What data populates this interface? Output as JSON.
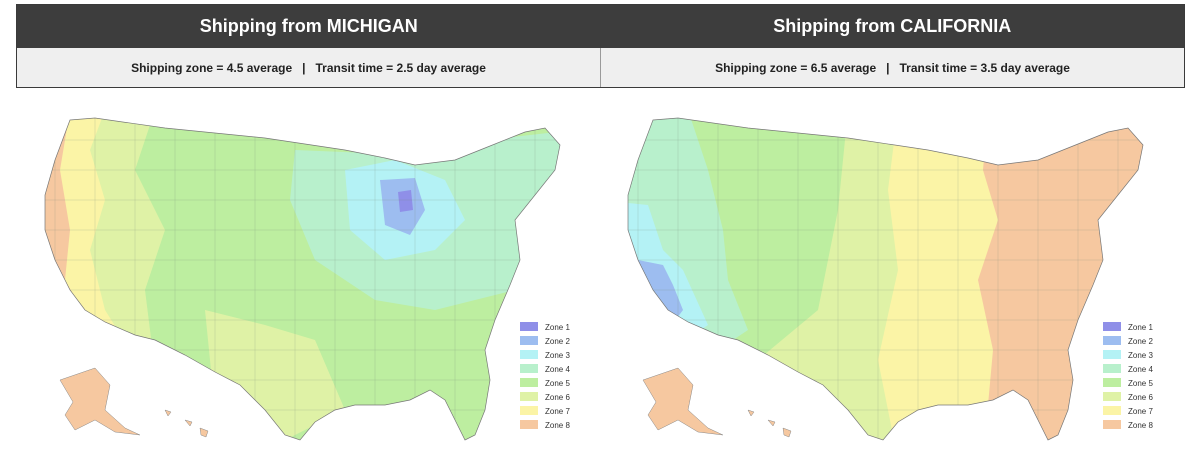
{
  "panels": [
    {
      "title": "Shipping from MICHIGAN",
      "summary": "Shipping zone = 4.5 average   |   Transit time = 2.5 day average"
    },
    {
      "title": "Shipping from CALIFORNIA",
      "summary": "Shipping zone = 6.5 average   |   Transit time = 3.5 day average"
    }
  ],
  "legend": [
    {
      "label": "Zone 1",
      "color": "#8f8fe8"
    },
    {
      "label": "Zone 2",
      "color": "#9dbdf0"
    },
    {
      "label": "Zone 3",
      "color": "#b4f2f5"
    },
    {
      "label": "Zone 4",
      "color": "#b8f0cc"
    },
    {
      "label": "Zone 5",
      "color": "#bdeea0"
    },
    {
      "label": "Zone 6",
      "color": "#dff2a6"
    },
    {
      "label": "Zone 7",
      "color": "#fbf4a6"
    },
    {
      "label": "Zone 8",
      "color": "#f6c8a0"
    }
  ]
}
